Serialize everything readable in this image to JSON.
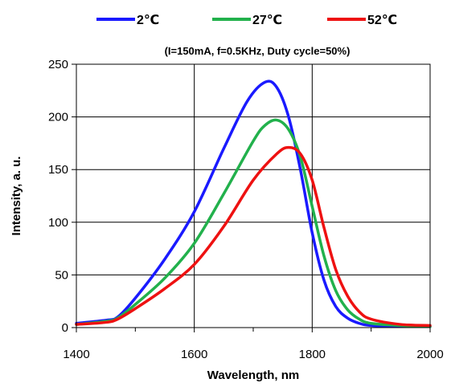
{
  "chart_data": {
    "type": "line",
    "subtitle": "(I=150mA, f=0.5KHz, Duty cycle=50%)",
    "xlabel": "Wavelength,  nm",
    "ylabel": "Intensity,  a. u.",
    "xlim": [
      1400,
      2000
    ],
    "ylim": [
      0,
      250
    ],
    "xticks": [
      1400,
      1600,
      1800,
      2000
    ],
    "yticks": [
      0,
      50,
      100,
      150,
      200,
      250
    ],
    "grid": true,
    "legend_position": "top",
    "series": [
      {
        "name": "2℃",
        "color": "#1a1aff",
        "x": [
          1400,
          1450,
          1470,
          1500,
          1550,
          1600,
          1650,
          1690,
          1720,
          1740,
          1760,
          1780,
          1800,
          1820,
          1840,
          1860,
          1880,
          1900,
          1950,
          2000
        ],
        "y": [
          4,
          7,
          10,
          28,
          65,
          110,
          170,
          215,
          233,
          228,
          200,
          150,
          90,
          45,
          20,
          9,
          4,
          2,
          1,
          1
        ]
      },
      {
        "name": "27℃",
        "color": "#22b14c",
        "x": [
          1400,
          1450,
          1470,
          1500,
          1550,
          1600,
          1650,
          1700,
          1720,
          1740,
          1760,
          1780,
          1800,
          1820,
          1840,
          1860,
          1880,
          1900,
          1950,
          2000
        ],
        "y": [
          3,
          6,
          9,
          22,
          47,
          80,
          127,
          177,
          192,
          197,
          188,
          162,
          115,
          68,
          35,
          17,
          8,
          4,
          2,
          1
        ]
      },
      {
        "name": "52℃",
        "color": "#ee1111",
        "x": [
          1400,
          1450,
          1470,
          1500,
          1550,
          1600,
          1650,
          1700,
          1740,
          1760,
          1780,
          1800,
          1820,
          1840,
          1860,
          1880,
          1900,
          1950,
          2000
        ],
        "y": [
          3,
          5,
          8,
          18,
          37,
          60,
          96,
          140,
          165,
          171,
          165,
          140,
          95,
          55,
          30,
          15,
          8,
          3,
          2
        ]
      }
    ]
  }
}
